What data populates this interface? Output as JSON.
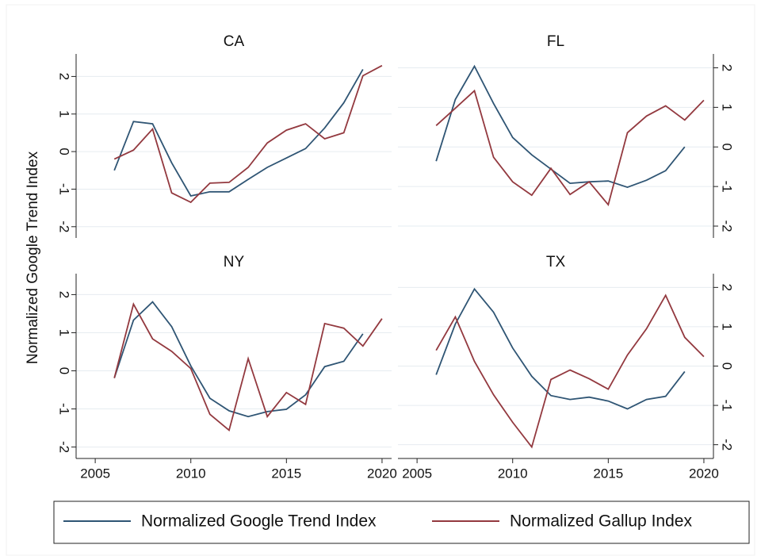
{
  "ylabel": "Normalized Google Trend Index",
  "legend": [
    {
      "name": "Normalized Google Trend Index",
      "color": "#2f5574"
    },
    {
      "name": "Normalized Gallup Index",
      "color": "#93393f"
    }
  ],
  "chart_data": [
    {
      "type": "line",
      "title": "CA",
      "x": [
        2006,
        2007,
        2008,
        2009,
        2010,
        2011,
        2012,
        2013,
        2014,
        2015,
        2016,
        2017,
        2018,
        2019,
        2020
      ],
      "series": [
        {
          "values": [
            -0.5,
            0.8,
            0.74,
            -0.3,
            -1.18,
            -1.07,
            -1.07,
            -0.74,
            -0.42,
            -0.17,
            0.08,
            0.63,
            1.3,
            2.19,
            null
          ]
        },
        {
          "values": [
            -0.2,
            0.04,
            0.6,
            -1.1,
            -1.35,
            -0.84,
            -0.82,
            -0.42,
            0.23,
            0.57,
            0.74,
            0.34,
            0.5,
            2.02,
            2.29
          ]
        }
      ],
      "xlim": [
        2004,
        2020.5
      ],
      "ylim": [
        -2.3,
        2.6
      ],
      "yticks": [
        -2,
        -1,
        0,
        1,
        2
      ],
      "yaxis": "left",
      "grid": true
    },
    {
      "type": "line",
      "title": "FL",
      "x": [
        2006,
        2007,
        2008,
        2009,
        2010,
        2011,
        2012,
        2013,
        2014,
        2015,
        2016,
        2017,
        2018,
        2019,
        2020
      ],
      "series": [
        {
          "values": [
            -0.36,
            1.2,
            2.04,
            1.1,
            0.24,
            -0.2,
            -0.56,
            -0.92,
            -0.88,
            -0.86,
            -1.02,
            -0.84,
            -0.6,
            0,
            null
          ]
        },
        {
          "values": [
            0.54,
            0.98,
            1.42,
            -0.26,
            -0.88,
            -1.22,
            -0.54,
            -1.2,
            -0.88,
            -1.46,
            0.36,
            0.78,
            1.04,
            0.68,
            1.18
          ]
        }
      ],
      "xlim": [
        2004,
        2020.5
      ],
      "ylim": [
        -2.3,
        2.35
      ],
      "yticks": [
        -2,
        -1,
        0,
        1,
        2
      ],
      "yaxis": "right",
      "grid": true
    },
    {
      "type": "line",
      "title": "NY",
      "x": [
        2006,
        2007,
        2008,
        2009,
        2010,
        2011,
        2012,
        2013,
        2014,
        2015,
        2016,
        2017,
        2018,
        2019,
        2020
      ],
      "series": [
        {
          "values": [
            -0.19,
            1.33,
            1.81,
            1.16,
            0.13,
            -0.72,
            -1.05,
            -1.2,
            -1.07,
            -1.01,
            -0.63,
            0.11,
            0.25,
            0.97,
            null
          ]
        },
        {
          "values": [
            -0.19,
            1.75,
            0.84,
            0.51,
            0.06,
            -1.14,
            -1.56,
            0.32,
            -1.2,
            -0.57,
            -0.88,
            1.24,
            1.12,
            0.65,
            1.37
          ]
        }
      ],
      "xlim": [
        2004,
        2020.5
      ],
      "xticks": [
        2005,
        2010,
        2015,
        2020
      ],
      "ylim": [
        -2.3,
        2.55
      ],
      "yticks": [
        -2,
        -1,
        0,
        1,
        2
      ],
      "yaxis": "left",
      "grid": true
    },
    {
      "type": "line",
      "title": "TX",
      "x": [
        2006,
        2007,
        2008,
        2009,
        2010,
        2011,
        2012,
        2013,
        2014,
        2015,
        2016,
        2017,
        2018,
        2019,
        2020
      ],
      "series": [
        {
          "values": [
            -0.22,
            1.07,
            1.96,
            1.37,
            0.46,
            -0.26,
            -0.75,
            -0.85,
            -0.79,
            -0.89,
            -1.09,
            -0.85,
            -0.77,
            -0.14,
            null
          ]
        },
        {
          "values": [
            0.4,
            1.25,
            0.12,
            -0.73,
            -1.43,
            -2.06,
            -0.34,
            -0.1,
            -0.32,
            -0.59,
            0.28,
            0.95,
            1.8,
            0.73,
            0.24
          ]
        }
      ],
      "xlim": [
        2004,
        2020.5
      ],
      "xticks": [
        2005,
        2010,
        2015,
        2020
      ],
      "ylim": [
        -2.35,
        2.35
      ],
      "yticks": [
        -2,
        -1,
        0,
        1,
        2
      ],
      "yaxis": "right",
      "grid": true
    }
  ]
}
